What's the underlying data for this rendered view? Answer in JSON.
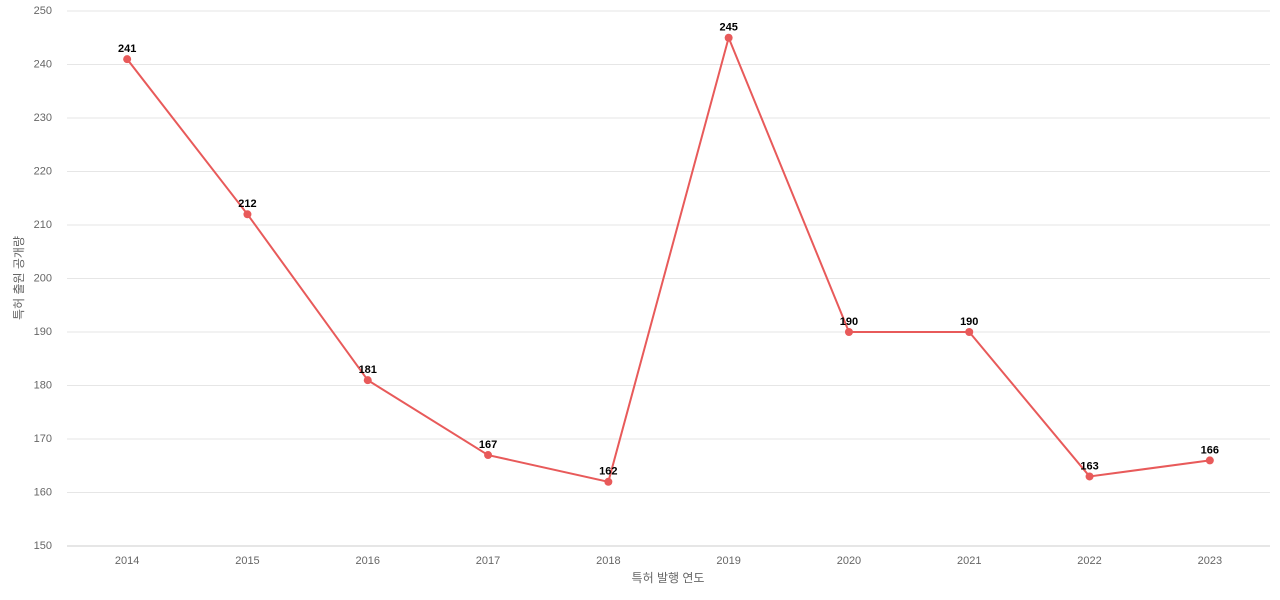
{
  "chart_data": {
    "type": "line",
    "x_label": "특허 발행 연도",
    "y_label": "특허 출원 공개량",
    "categories": [
      "2014",
      "2015",
      "2016",
      "2017",
      "2018",
      "2019",
      "2020",
      "2021",
      "2022",
      "2023"
    ],
    "series": [
      {
        "color": "#e85a5a",
        "values": [
          241,
          212,
          181,
          167,
          162,
          245,
          190,
          190,
          163,
          166
        ]
      }
    ],
    "ylim": [
      150,
      250
    ],
    "yticks": [
      150,
      160,
      170,
      180,
      190,
      200,
      210,
      220,
      230,
      240,
      250
    ],
    "grid": true
  }
}
